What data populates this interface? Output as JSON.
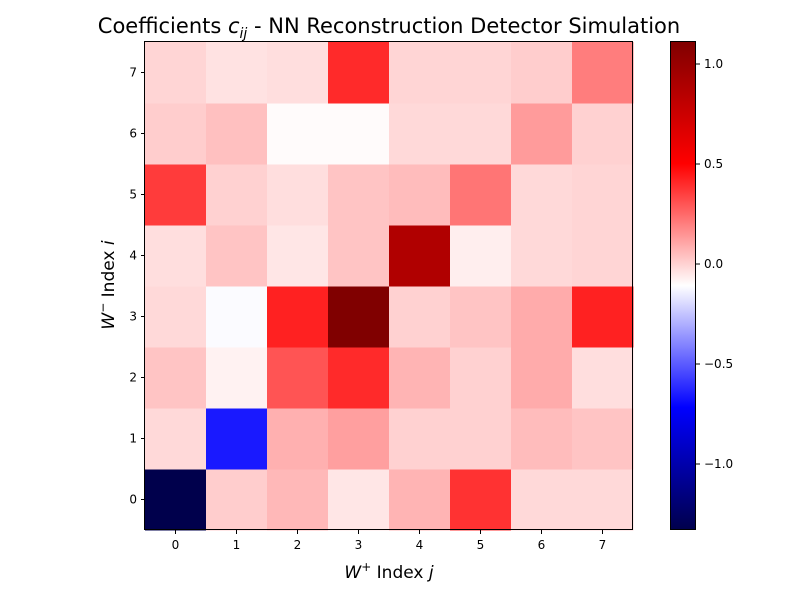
{
  "chart_data": {
    "type": "heatmap",
    "title": "Coefficients c_ij - NN Reconstruction Detector Simulation",
    "title_parts": {
      "prefix": "Coefficients ",
      "symbol": "c",
      "subscript": "ij",
      "suffix": " - NN Reconstruction Detector Simulation"
    },
    "xlabel": "W+ Index j",
    "xlabel_parts": {
      "symbol": "W",
      "superscript": "+",
      "text": " Index ",
      "var": "j"
    },
    "ylabel": "W− Index i",
    "ylabel_parts": {
      "symbol": "W",
      "superscript": "−",
      "text": " Index ",
      "var": "i"
    },
    "x_categories": [
      "0",
      "1",
      "2",
      "3",
      "4",
      "5",
      "6",
      "7"
    ],
    "y_categories": [
      "0",
      "1",
      "2",
      "3",
      "4",
      "5",
      "6",
      "7"
    ],
    "values": [
      [
        -1.33,
        0.01,
        0.06,
        -0.05,
        0.07,
        0.38,
        -0.02,
        -0.02
      ],
      [
        -0.02,
        -0.66,
        0.08,
        0.12,
        0.0,
        0.0,
        0.05,
        0.03
      ],
      [
        0.03,
        -0.08,
        0.3,
        0.4,
        0.07,
        0.0,
        0.09,
        -0.03
      ],
      [
        -0.02,
        -0.12,
        0.42,
        1.11,
        0.0,
        0.03,
        0.09,
        0.42
      ],
      [
        -0.03,
        0.03,
        -0.05,
        0.03,
        0.88,
        -0.07,
        -0.02,
        -0.01
      ],
      [
        0.36,
        0.0,
        -0.03,
        0.03,
        0.05,
        0.22,
        -0.02,
        -0.01
      ],
      [
        0.01,
        0.04,
        -0.1,
        -0.1,
        -0.02,
        -0.02,
        0.13,
        0.0
      ],
      [
        -0.01,
        -0.04,
        -0.03,
        0.4,
        -0.01,
        -0.01,
        0.01,
        0.2
      ]
    ],
    "colormap": "seismic",
    "vmin": -1.33,
    "vmax": 1.11,
    "colorbar_ticks": [
      1.0,
      0.5,
      0.0,
      -0.5,
      -1.0
    ],
    "colorbar_tick_labels": [
      "1.0",
      "0.5",
      "0.0",
      "−0.5",
      "−1.0"
    ]
  }
}
